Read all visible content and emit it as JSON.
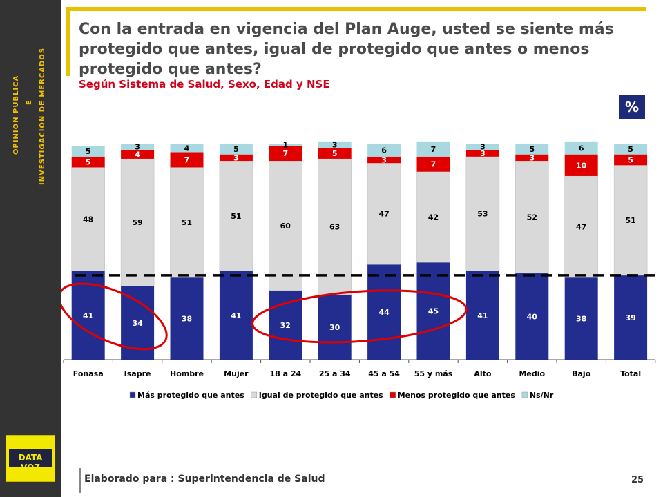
{
  "sidebar": {
    "line1": "OPINION PUBLICA",
    "line2": "E",
    "line3": "INVESTIGACION DE MERCADOS",
    "logo_text": "DATA VOZ"
  },
  "header": {
    "title": "Con la entrada en vigencia del Plan Auge, usted se siente más protegido que antes, igual de protegido que antes o menos protegido que antes?",
    "subtitle": "Según Sistema de Salud, Sexo, Edad y NSE",
    "unit_badge": "%"
  },
  "footer": {
    "text": "Elaborado para : Superintendencia de Salud",
    "page_number": "25"
  },
  "colors": {
    "mas": "#232d8f",
    "igual": "#d9d9d9",
    "menos": "#e00000",
    "nsnr": "#a9d8e0",
    "highlight": "#e00000",
    "accent": "#e6c200"
  },
  "chart_data": {
    "type": "bar",
    "stacked": true,
    "categories": [
      "Fonasa",
      "Isapre",
      "Hombre",
      "Mujer",
      "18 a 24",
      "25 a 34",
      "45 a 54",
      "55 y más",
      "Alto",
      "Medio",
      "Bajo",
      "Total"
    ],
    "series": [
      {
        "name": "Más protegido que antes",
        "values": [
          41,
          34,
          38,
          41,
          32,
          30,
          44,
          45,
          41,
          40,
          38,
          39
        ]
      },
      {
        "name": "Igual de protegido que antes",
        "values": [
          48,
          59,
          51,
          51,
          60,
          63,
          47,
          42,
          53,
          52,
          47,
          51
        ]
      },
      {
        "name": "Menos protegido que antes",
        "values": [
          5,
          4,
          7,
          3,
          7,
          5,
          3,
          7,
          3,
          3,
          10,
          5
        ]
      },
      {
        "name": "Ns/Nr",
        "values": [
          5,
          3,
          4,
          5,
          1,
          3,
          6,
          7,
          3,
          5,
          6,
          5
        ]
      }
    ],
    "reference_line": 39,
    "ylim": [
      0,
      100
    ],
    "legend_position": "bottom",
    "highlighted_groups": [
      [
        "Fonasa",
        "Isapre"
      ],
      [
        "18 a 24",
        "25 a 34",
        "45 a 54",
        "55 y más"
      ]
    ]
  }
}
